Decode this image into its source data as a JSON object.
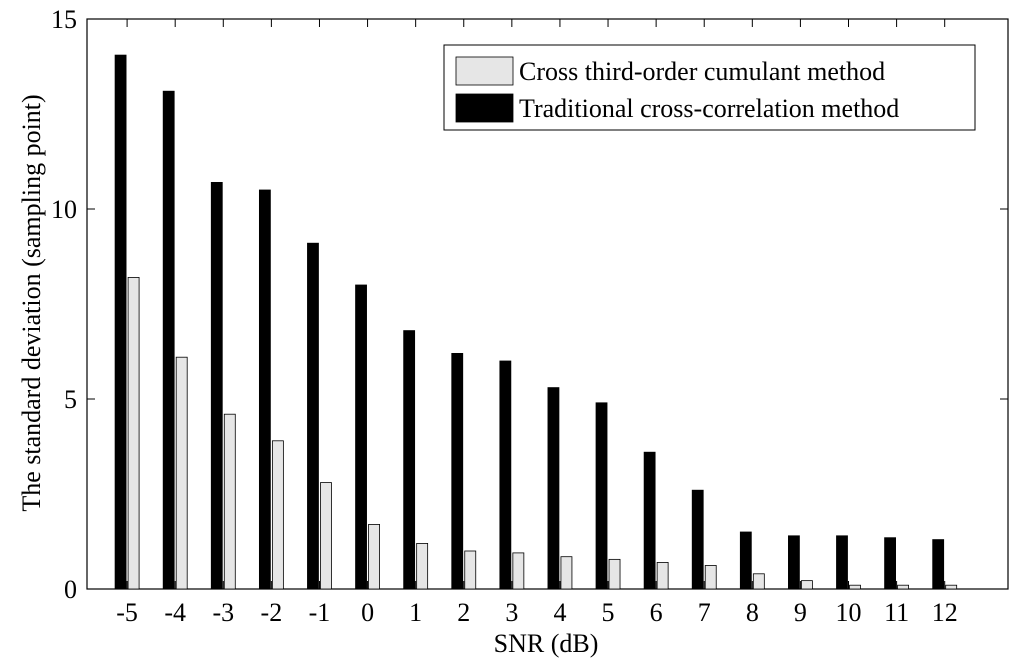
{
  "chart_data": {
    "type": "bar",
    "title": "",
    "xlabel": "SNR (dB)",
    "ylabel": "The standard deviation (sampling point)",
    "categories": [
      "-5",
      "-4",
      "-3",
      "-2",
      "-1",
      "0",
      "1",
      "2",
      "3",
      "4",
      "5",
      "6",
      "7",
      "8",
      "9",
      "10",
      "11",
      "12"
    ],
    "series": [
      {
        "name": "Cross third-order cumulant method",
        "color": "#e6e6e6",
        "values": [
          8.2,
          6.1,
          4.6,
          3.9,
          2.8,
          1.7,
          1.2,
          1.0,
          0.95,
          0.85,
          0.78,
          0.7,
          0.62,
          0.4,
          0.22,
          0.1,
          0.1,
          0.1
        ]
      },
      {
        "name": "Traditional cross-correlation method",
        "color": "#000000",
        "values": [
          14.05,
          13.1,
          10.7,
          10.5,
          9.1,
          8.0,
          6.8,
          6.2,
          6.0,
          5.3,
          4.9,
          3.6,
          2.6,
          1.5,
          1.4,
          1.4,
          1.35,
          1.3
        ]
      }
    ],
    "ylim": [
      0,
      15
    ],
    "yticks": [
      "0",
      "5",
      "10",
      "15"
    ],
    "grid": false,
    "legend_position": "top-right"
  }
}
